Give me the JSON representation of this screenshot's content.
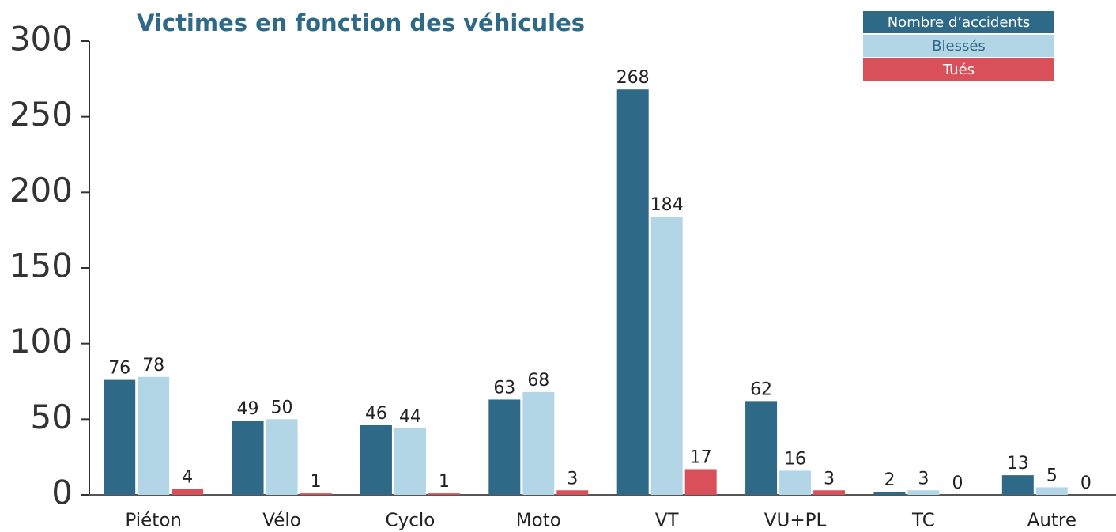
{
  "chart_data": {
    "type": "bar",
    "title": "Victimes en fonction des véhicules",
    "categories": [
      "Piéton",
      "Vélo",
      "Cyclo",
      "Moto",
      "VT",
      "VU+PL",
      "TC",
      "Autre"
    ],
    "series": [
      {
        "name": "Nombre d’accidents",
        "color": "#2e6a87",
        "values": [
          76,
          49,
          46,
          63,
          268,
          62,
          2,
          13
        ]
      },
      {
        "name": "Blessés",
        "color": "#b3d6e6",
        "values": [
          78,
          50,
          44,
          68,
          184,
          16,
          3,
          5
        ]
      },
      {
        "name": "Tués",
        "color": "#d9505a",
        "values": [
          4,
          1,
          1,
          3,
          17,
          3,
          0,
          0
        ]
      }
    ],
    "ylim": [
      0,
      300
    ],
    "yticks": [
      0,
      50,
      100,
      150,
      200,
      250,
      300
    ],
    "grid": false,
    "legend": "top-right"
  }
}
